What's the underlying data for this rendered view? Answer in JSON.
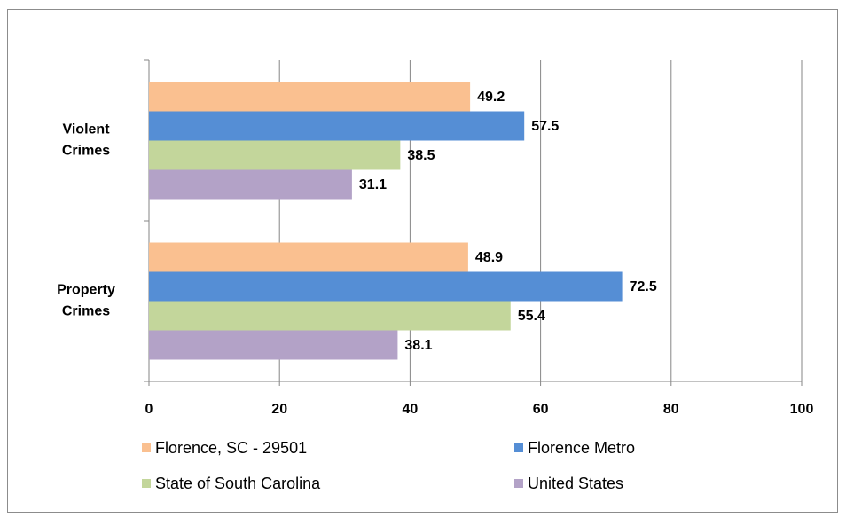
{
  "chart_data": {
    "type": "bar",
    "orientation": "horizontal",
    "categories": [
      "Violent Crimes",
      "Property Crimes"
    ],
    "series": [
      {
        "name": "Florence, SC - 29501",
        "color": "#fac090",
        "values": [
          49.2,
          48.9
        ]
      },
      {
        "name": "Florence Metro",
        "color": "#558ed5",
        "values": [
          57.5,
          72.5
        ]
      },
      {
        "name": "State of South Carolina",
        "color": "#c3d69b",
        "values": [
          38.5,
          55.4
        ]
      },
      {
        "name": "United States",
        "color": "#b3a2c7",
        "values": [
          31.1,
          38.1
        ]
      }
    ],
    "xlim": [
      0,
      100
    ],
    "xticks": [
      0,
      20,
      40,
      60,
      80,
      100
    ],
    "grid": true,
    "legend": "bottom"
  }
}
